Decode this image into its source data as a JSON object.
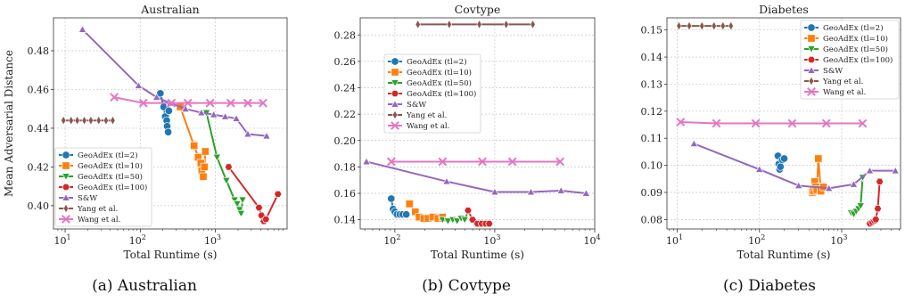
{
  "legend_series": [
    "GeoAdEx (tl=2)",
    "GeoAdEx (tl=10)",
    "GeoAdEx (tl=50)",
    "GeoAdEx (tl=100)",
    "S&W",
    "Yang et al.",
    "Wang et al."
  ],
  "colors": {
    "GeoAdEx (tl=2)": "#1f77b4",
    "GeoAdEx (tl=10)": "#ff7f0e",
    "GeoAdEx (tl=50)": "#2ca02c",
    "GeoAdEx (tl=100)": "#d62728",
    "S&W": "#9467bd",
    "Yang et al.": "#8c564b",
    "Wang et al.": "#e377c2"
  },
  "markers": {
    "GeoAdEx (tl=2)": "circle",
    "GeoAdEx (tl=10)": "square",
    "GeoAdEx (tl=50)": "triangle-down",
    "GeoAdEx (tl=100)": "hexagon",
    "S&W": "triangle-up",
    "Yang et al.": "diamond",
    "Wang et al.": "x"
  },
  "chart_data": [
    {
      "type": "line",
      "title": "Australian",
      "caption": "(a) Australian",
      "xlabel": "Total Runtime (s)",
      "ylabel": "Mean Adversarial Distance",
      "xscale": "log",
      "xlim": [
        7,
        9000
      ],
      "ylim": [
        0.388,
        0.497
      ],
      "xticks": [
        {
          "v": 10,
          "label": "10",
          "exp": "1"
        },
        {
          "v": 100,
          "label": "10",
          "exp": "2"
        },
        {
          "v": 1000,
          "label": "10",
          "exp": "3"
        }
      ],
      "yticks": [
        0.4,
        0.42,
        0.44,
        0.46,
        0.48
      ],
      "ytick_labels": [
        "0.40",
        "0.42",
        "0.44",
        "0.46",
        "0.48"
      ],
      "grid": true,
      "legend_position": "lower-left",
      "series": [
        {
          "name": "GeoAdEx (tl=2)",
          "x": [
            185,
            205,
            215,
            225,
            228,
            235,
            240
          ],
          "y": [
            0.458,
            0.451,
            0.446,
            0.444,
            0.441,
            0.438,
            0.449
          ]
        },
        {
          "name": "GeoAdEx (tl=10)",
          "x": [
            340,
            520,
            590,
            640,
            660,
            690,
            715,
            735
          ],
          "y": [
            0.451,
            0.431,
            0.425,
            0.422,
            0.418,
            0.415,
            0.42,
            0.428
          ]
        },
        {
          "name": "GeoAdEx (tl=50)",
          "x": [
            760,
            1050,
            1400,
            1800,
            1950,
            2100,
            2200,
            2300
          ],
          "y": [
            0.448,
            0.425,
            0.413,
            0.403,
            0.401,
            0.398,
            0.396,
            0.403
          ]
        },
        {
          "name": "GeoAdEx (tl=100)",
          "x": [
            1500,
            3800,
            4100,
            4400,
            4700,
            6800
          ],
          "y": [
            0.42,
            0.399,
            0.395,
            0.392,
            0.393,
            0.406
          ]
        },
        {
          "name": "S&W",
          "x": [
            17,
            95,
            165,
            250,
            400,
            650,
            950,
            1350,
            1900,
            2700,
            4800
          ],
          "y": [
            0.491,
            0.462,
            0.456,
            0.453,
            0.45,
            0.448,
            0.447,
            0.446,
            0.445,
            0.437,
            0.436
          ]
        },
        {
          "name": "Yang et al.",
          "x": [
            9.5,
            12,
            14.5,
            18,
            22,
            28,
            35,
            43
          ],
          "y": [
            0.444,
            0.444,
            0.444,
            0.444,
            0.444,
            0.444,
            0.444,
            0.444
          ]
        },
        {
          "name": "Wang et al.",
          "x": [
            45,
            110,
            260,
            430,
            850,
            1600,
            2700,
            4300
          ],
          "y": [
            0.456,
            0.453,
            0.453,
            0.453,
            0.453,
            0.453,
            0.453,
            0.453
          ]
        }
      ]
    },
    {
      "type": "line",
      "title": "Covtype",
      "caption": "(b) Covtype",
      "xlabel": "Total Runtime (s)",
      "ylabel": "",
      "xscale": "log",
      "xlim": [
        45,
        10000
      ],
      "ylim": [
        0.133,
        0.293
      ],
      "xticks": [
        {
          "v": 100,
          "label": "10",
          "exp": "2"
        },
        {
          "v": 1000,
          "label": "10",
          "exp": "3"
        },
        {
          "v": 10000,
          "label": "10",
          "exp": "4"
        }
      ],
      "yticks": [
        0.14,
        0.16,
        0.18,
        0.2,
        0.22,
        0.24,
        0.26,
        0.28
      ],
      "ytick_labels": [
        "0.14",
        "0.16",
        "0.18",
        "0.20",
        "0.22",
        "0.24",
        "0.26",
        "0.28"
      ],
      "grid": true,
      "legend_position": "center-left",
      "series": [
        {
          "name": "GeoAdEx (tl=2)",
          "x": [
            92,
            96,
            100,
            105,
            112,
            120,
            130
          ],
          "y": [
            0.156,
            0.148,
            0.146,
            0.144,
            0.144,
            0.144,
            0.144
          ]
        },
        {
          "name": "GeoAdEx (tl=10)",
          "x": [
            140,
            160,
            175,
            195,
            215,
            240,
            270,
            300
          ],
          "y": [
            0.152,
            0.146,
            0.142,
            0.141,
            0.141,
            0.142,
            0.141,
            0.142
          ]
        },
        {
          "name": "GeoAdEx (tl=50)",
          "x": [
            300,
            340,
            380,
            420,
            460,
            500,
            540
          ],
          "y": [
            0.14,
            0.139,
            0.14,
            0.139,
            0.141,
            0.14,
            0.146
          ]
        },
        {
          "name": "GeoAdEx (tl=100)",
          "x": [
            540,
            600,
            670,
            740,
            810,
            880
          ],
          "y": [
            0.147,
            0.14,
            0.137,
            0.137,
            0.137,
            0.137
          ]
        },
        {
          "name": "S&W",
          "x": [
            52,
            330,
            1000,
            2300,
            4600,
            8200
          ],
          "y": [
            0.184,
            0.169,
            0.161,
            0.161,
            0.162,
            0.16
          ]
        },
        {
          "name": "Yang et al.",
          "x": [
            170,
            350,
            700,
            1300,
            2400
          ],
          "y": [
            0.288,
            0.288,
            0.288,
            0.288,
            0.288
          ]
        },
        {
          "name": "Wang et al.",
          "x": [
            92,
            300,
            750,
            1500,
            4500
          ],
          "y": [
            0.184,
            0.184,
            0.184,
            0.184,
            0.184
          ]
        }
      ]
    },
    {
      "type": "line",
      "title": "Diabetes",
      "caption": "(c) Diabetes",
      "xlabel": "Total Runtime (s)",
      "ylabel": "",
      "xscale": "log",
      "xlim": [
        7.5,
        5200
      ],
      "ylim": [
        0.0765,
        0.1545
      ],
      "xticks": [
        {
          "v": 10,
          "label": "10",
          "exp": "1"
        },
        {
          "v": 100,
          "label": "10",
          "exp": "2"
        },
        {
          "v": 1000,
          "label": "10",
          "exp": "3"
        }
      ],
      "yticks": [
        0.08,
        0.09,
        0.1,
        0.11,
        0.12,
        0.13,
        0.14,
        0.15
      ],
      "ytick_labels": [
        "0.08",
        "0.09",
        "0.10",
        "0.11",
        "0.12",
        "0.13",
        "0.14",
        "0.15"
      ],
      "grid": true,
      "legend_position": "upper-right",
      "series": [
        {
          "name": "GeoAdEx (tl=2)",
          "x": [
            168,
            172,
            176,
            180,
            190,
            200
          ],
          "y": [
            0.1035,
            0.1005,
            0.0985,
            0.0995,
            0.102,
            0.1025
          ]
        },
        {
          "name": "GeoAdEx (tl=10)",
          "x": [
            440,
            455,
            470,
            485,
            500,
            520,
            560,
            600
          ],
          "y": [
            0.09,
            0.0905,
            0.094,
            0.092,
            0.091,
            0.1025,
            0.0905,
            0.092
          ]
        },
        {
          "name": "GeoAdEx (tl=50)",
          "x": [
            1300,
            1400,
            1500,
            1600,
            1700,
            1800
          ],
          "y": [
            0.0825,
            0.082,
            0.083,
            0.084,
            0.085,
            0.0955
          ]
        },
        {
          "name": "GeoAdEx (tl=100)",
          "x": [
            2200,
            2350,
            2500,
            2600,
            2750,
            2900
          ],
          "y": [
            0.0785,
            0.079,
            0.0795,
            0.08,
            0.084,
            0.094
          ]
        },
        {
          "name": "S&W",
          "x": [
            16,
            100,
            300,
            700,
            1400,
            2200,
            4500
          ],
          "y": [
            0.108,
            0.0985,
            0.0925,
            0.0915,
            0.093,
            0.098,
            0.098
          ]
        },
        {
          "name": "Yang et al.",
          "x": [
            10.5,
            14,
            20,
            28,
            36,
            45
          ],
          "y": [
            0.1515,
            0.1515,
            0.1515,
            0.1515,
            0.1515,
            0.1515
          ]
        },
        {
          "name": "Wang et al.",
          "x": [
            11,
            30,
            90,
            250,
            650,
            1800
          ],
          "y": [
            0.116,
            0.1155,
            0.1155,
            0.1155,
            0.1155,
            0.1155
          ]
        }
      ]
    }
  ]
}
